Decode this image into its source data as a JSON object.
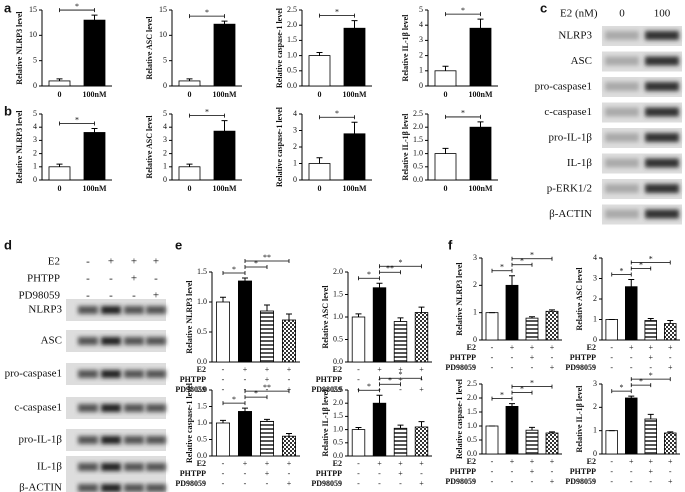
{
  "panels": {
    "a": "a",
    "b": "b",
    "c": "c",
    "d": "d",
    "e": "e",
    "f": "f"
  },
  "blot_c": {
    "header": "E2 (nM)",
    "lanes": [
      "0",
      "100"
    ],
    "rows": [
      "NLRP3",
      "ASC",
      "pro-caspase1",
      "c-caspase1",
      "pro-IL-1β",
      "IL-1β",
      "p-ERK1/2",
      "β-ACTIN"
    ]
  },
  "blot_d": {
    "conditions": [
      {
        "name": "E2",
        "signs": [
          "-",
          "+",
          "+",
          "+"
        ]
      },
      {
        "name": "PHTPP",
        "signs": [
          "-",
          "-",
          "+",
          "-"
        ]
      },
      {
        "name": "PD98059",
        "signs": [
          "-",
          "-",
          "-",
          "+"
        ]
      }
    ],
    "rows": [
      "NLRP3",
      "ASC",
      "pro-caspase1",
      "c-caspase1",
      "pro-IL-1β",
      "IL-1β",
      "β-ACTIN"
    ]
  },
  "chart_data": [
    {
      "type": "bar",
      "y_label": "Relative NLRP3 level",
      "categories": [
        "0",
        "100nM"
      ],
      "values": [
        1,
        13
      ],
      "errors": [
        0.4,
        1
      ],
      "fills": [
        "white",
        "black"
      ],
      "ylim": [
        0,
        15
      ],
      "yticks": [
        0,
        5,
        10,
        15
      ],
      "significance": [
        {
          "from": 0,
          "to": 1,
          "label": "*"
        }
      ]
    },
    {
      "type": "bar",
      "y_label": "Relative ASC level",
      "categories": [
        "0",
        "100nM"
      ],
      "values": [
        1,
        12.2
      ],
      "errors": [
        0.4,
        0.6
      ],
      "fills": [
        "white",
        "black"
      ],
      "ylim": [
        0,
        15
      ],
      "yticks": [
        0,
        5,
        10,
        15
      ],
      "significance": [
        {
          "from": 0,
          "to": 1,
          "label": "*"
        }
      ]
    },
    {
      "type": "bar",
      "y_label": "Relative caspase-1 level",
      "categories": [
        "0",
        "100nM"
      ],
      "values": [
        1,
        1.9
      ],
      "errors": [
        0.1,
        0.25
      ],
      "fills": [
        "white",
        "black"
      ],
      "ylim": [
        0,
        2.5
      ],
      "yticks": [
        {
          "value": 0,
          "label": "0.0"
        },
        {
          "value": 0.5,
          "label": "0.5"
        },
        {
          "value": 1,
          "label": "1.0"
        },
        {
          "value": 1.5,
          "label": "1.5"
        },
        {
          "value": 2,
          "label": "2.0"
        },
        {
          "value": 2.5,
          "label": "2.5"
        }
      ],
      "significance": [
        {
          "from": 0,
          "to": 1,
          "label": "*"
        }
      ]
    },
    {
      "type": "bar",
      "y_label": "Relative IL-1β level",
      "categories": [
        "0",
        "100nM"
      ],
      "values": [
        1,
        3.8
      ],
      "errors": [
        0.3,
        0.6
      ],
      "fills": [
        "white",
        "black"
      ],
      "ylim": [
        0,
        5
      ],
      "yticks": [
        0,
        1,
        2,
        3,
        4,
        5
      ],
      "significance": [
        {
          "from": 0,
          "to": 1,
          "label": "*"
        }
      ]
    },
    {
      "type": "bar",
      "y_label": "Relative NLRP3 level",
      "categories": [
        "0",
        "100nM"
      ],
      "values": [
        1,
        3.6
      ],
      "errors": [
        0.2,
        0.3
      ],
      "fills": [
        "white",
        "black"
      ],
      "ylim": [
        0,
        5
      ],
      "yticks": [
        0,
        1,
        2,
        3,
        4,
        5
      ],
      "significance": [
        {
          "from": 0,
          "to": 1,
          "label": "*"
        }
      ]
    },
    {
      "type": "bar",
      "y_label": "Relative ASC level",
      "categories": [
        "0",
        "100nM"
      ],
      "values": [
        1,
        3.7
      ],
      "errors": [
        0.2,
        0.8
      ],
      "fills": [
        "white",
        "black"
      ],
      "ylim": [
        0,
        5
      ],
      "yticks": [
        0,
        1,
        2,
        3,
        4,
        5
      ],
      "significance": [
        {
          "from": 0,
          "to": 1,
          "label": "*"
        }
      ]
    },
    {
      "type": "bar",
      "y_label": "Relative caspase-1 level",
      "categories": [
        "0",
        "100nM"
      ],
      "values": [
        1,
        2.8
      ],
      "errors": [
        0.35,
        0.7
      ],
      "fills": [
        "white",
        "black"
      ],
      "ylim": [
        0,
        4
      ],
      "yticks": [
        0,
        1,
        2,
        3,
        4
      ],
      "significance": [
        {
          "from": 0,
          "to": 1,
          "label": "*"
        }
      ]
    },
    {
      "type": "bar",
      "y_label": "Relative IL-1β level",
      "categories": [
        "0",
        "100nM"
      ],
      "values": [
        1,
        2
      ],
      "errors": [
        0.2,
        0.2
      ],
      "fills": [
        "white",
        "black"
      ],
      "ylim": [
        0,
        2.5
      ],
      "yticks": [
        {
          "value": 0,
          "label": "0.0"
        },
        {
          "value": 0.5,
          "label": "0.5"
        },
        {
          "value": 1,
          "label": "1.0"
        },
        {
          "value": 1.5,
          "label": "1.5"
        },
        {
          "value": 2,
          "label": "2.0"
        },
        {
          "value": 2.5,
          "label": "2.5"
        }
      ],
      "significance": [
        {
          "from": 0,
          "to": 1,
          "label": "*"
        }
      ]
    },
    {
      "type": "bar",
      "y_label": "Relative NLRP3 level",
      "conditions": [
        {
          "name": "E2",
          "signs": [
            "-",
            "+",
            "+",
            "+"
          ]
        },
        {
          "name": "PHTPP",
          "signs": [
            "-",
            "-",
            "+",
            "-"
          ]
        },
        {
          "name": "PD98059",
          "signs": [
            "-",
            "-",
            "-",
            "+"
          ]
        }
      ],
      "values": [
        1,
        1.35,
        0.85,
        0.7
      ],
      "errors": [
        0.08,
        0.05,
        0.1,
        0.1
      ],
      "fills": [
        "white",
        "black",
        "hatch",
        "check"
      ],
      "ylim": [
        0,
        1.5
      ],
      "yticks": [
        {
          "value": 0,
          "label": "0.0"
        },
        {
          "value": 0.5,
          "label": "0.5"
        },
        {
          "value": 1,
          "label": "1.0"
        },
        {
          "value": 1.5,
          "label": "1.5"
        }
      ],
      "significance": [
        {
          "from": 0,
          "to": 1,
          "label": "*"
        },
        {
          "from": 1,
          "to": 2,
          "label": "*"
        },
        {
          "from": 1,
          "to": 3,
          "label": "**"
        }
      ]
    },
    {
      "type": "bar",
      "y_label": "Relative ASC level",
      "conditions": [
        {
          "name": "E2",
          "signs": [
            "-",
            "+",
            "+",
            "+"
          ]
        },
        {
          "name": "PHTPP",
          "signs": [
            "-",
            "-",
            "+",
            "-"
          ]
        },
        {
          "name": "PD98059",
          "signs": [
            "-",
            "-",
            "-",
            "+"
          ]
        }
      ],
      "values": [
        1,
        1.65,
        0.9,
        1.1
      ],
      "errors": [
        0.07,
        0.1,
        0.08,
        0.12
      ],
      "fills": [
        "white",
        "black",
        "hatch",
        "check"
      ],
      "ylim": [
        0,
        2
      ],
      "yticks": [
        {
          "value": 0,
          "label": "0.0"
        },
        {
          "value": 0.5,
          "label": "0.5"
        },
        {
          "value": 1,
          "label": "1.0"
        },
        {
          "value": 1.5,
          "label": "1.5"
        },
        {
          "value": 2,
          "label": "2.0"
        }
      ],
      "significance": [
        {
          "from": 0,
          "to": 1,
          "label": "*"
        },
        {
          "from": 1,
          "to": 2,
          "label": "**"
        },
        {
          "from": 1,
          "to": 3,
          "label": "*"
        }
      ]
    },
    {
      "type": "bar",
      "y_label": "Relative caspase-1 level",
      "conditions": [
        {
          "name": "E2",
          "signs": [
            "-",
            "+",
            "+",
            "+"
          ]
        },
        {
          "name": "PHTPP",
          "signs": [
            "-",
            "-",
            "+",
            "-"
          ]
        },
        {
          "name": "PD98059",
          "signs": [
            "-",
            "-",
            "-",
            "+"
          ]
        }
      ],
      "values": [
        1,
        1.35,
        1.05,
        0.6
      ],
      "errors": [
        0.08,
        0.1,
        0.06,
        0.08
      ],
      "fills": [
        "white",
        "black",
        "hatch",
        "check"
      ],
      "ylim": [
        0,
        2
      ],
      "yticks": [
        {
          "value": 0,
          "label": "0.0"
        },
        {
          "value": 0.5,
          "label": "0.5"
        },
        {
          "value": 1,
          "label": "1.0"
        },
        {
          "value": 1.5,
          "label": "1.5"
        },
        {
          "value": 2,
          "label": "2.0"
        }
      ],
      "significance": [
        {
          "from": 0,
          "to": 1,
          "label": "*"
        },
        {
          "from": 1,
          "to": 2,
          "label": "*"
        },
        {
          "from": 1,
          "to": 3,
          "label": "**"
        }
      ]
    },
    {
      "type": "bar",
      "y_label": "Relative IL-1β level",
      "conditions": [
        {
          "name": "E2",
          "signs": [
            "-",
            "+",
            "+",
            "+"
          ]
        },
        {
          "name": "PHTPP",
          "signs": [
            "-",
            "-",
            "+",
            "-"
          ]
        },
        {
          "name": "PD98059",
          "signs": [
            "-",
            "-",
            "-",
            "+"
          ]
        }
      ],
      "values": [
        1,
        2,
        1.05,
        1.1
      ],
      "errors": [
        0.08,
        0.3,
        0.12,
        0.2
      ],
      "fills": [
        "white",
        "black",
        "hatch",
        "check"
      ],
      "ylim": [
        0,
        2.5
      ],
      "yticks": [
        {
          "value": 0,
          "label": "0.0"
        },
        {
          "value": 0.5,
          "label": "0.5"
        },
        {
          "value": 1,
          "label": "1.0"
        },
        {
          "value": 1.5,
          "label": "1.5"
        },
        {
          "value": 2,
          "label": "2.0"
        },
        {
          "value": 2.5,
          "label": "2.5"
        }
      ],
      "significance": [
        {
          "from": 0,
          "to": 1,
          "label": "*"
        },
        {
          "from": 1,
          "to": 2,
          "label": "*"
        },
        {
          "from": 1,
          "to": 3,
          "label": "*"
        }
      ]
    },
    {
      "type": "bar",
      "y_label": "Relative NLRP3 level",
      "conditions": [
        {
          "name": "E2",
          "signs": [
            "-",
            "+",
            "+",
            "+"
          ]
        },
        {
          "name": "PHTPP",
          "signs": [
            "-",
            "-",
            "+",
            "-"
          ]
        },
        {
          "name": "PD98059",
          "signs": [
            "-",
            "-",
            "-",
            "+"
          ]
        }
      ],
      "values": [
        1,
        2,
        0.8,
        1.05
      ],
      "errors": [
        0,
        0.35,
        0.05,
        0.05
      ],
      "fills": [
        "white",
        "black",
        "hatch",
        "check"
      ],
      "ylim": [
        0,
        3
      ],
      "yticks": [
        0,
        1,
        2,
        3
      ],
      "significance": [
        {
          "from": 0,
          "to": 1,
          "label": "*"
        },
        {
          "from": 1,
          "to": 2,
          "label": "*"
        },
        {
          "from": 1,
          "to": 3,
          "label": "*"
        }
      ]
    },
    {
      "type": "bar",
      "y_label": "Relative ASC level",
      "conditions": [
        {
          "name": "E2",
          "signs": [
            "-",
            "+",
            "+",
            "+"
          ]
        },
        {
          "name": "PHTPP",
          "signs": [
            "-",
            "-",
            "+",
            "-"
          ]
        },
        {
          "name": "PD98059",
          "signs": [
            "-",
            "-",
            "-",
            "+"
          ]
        }
      ],
      "values": [
        1,
        2.6,
        0.95,
        0.8
      ],
      "errors": [
        0,
        0.35,
        0.1,
        0.15
      ],
      "fills": [
        "white",
        "black",
        "hatch",
        "check"
      ],
      "ylim": [
        0,
        4
      ],
      "yticks": [
        0,
        1,
        2,
        3,
        4
      ],
      "significance": [
        {
          "from": 0,
          "to": 1,
          "label": "*"
        },
        {
          "from": 1,
          "to": 2,
          "label": "*"
        },
        {
          "from": 1,
          "to": 3,
          "label": "*"
        }
      ]
    },
    {
      "type": "bar",
      "y_label": "Relative caspase-1 level",
      "conditions": [
        {
          "name": "E2",
          "signs": [
            "-",
            "+",
            "+",
            "+"
          ]
        },
        {
          "name": "PHTPP",
          "signs": [
            "-",
            "-",
            "+",
            "-"
          ]
        },
        {
          "name": "PD98059",
          "signs": [
            "-",
            "-",
            "-",
            "+"
          ]
        }
      ],
      "values": [
        1,
        1.7,
        0.85,
        0.75
      ],
      "errors": [
        0,
        0.1,
        0.1,
        0.04
      ],
      "fills": [
        "white",
        "black",
        "hatch",
        "check"
      ],
      "ylim": [
        0,
        2.5
      ],
      "yticks": [
        {
          "value": 0,
          "label": "0.0"
        },
        {
          "value": 0.5,
          "label": "0.5"
        },
        {
          "value": 1,
          "label": "1.0"
        },
        {
          "value": 1.5,
          "label": "1.5"
        },
        {
          "value": 2,
          "label": "2.0"
        },
        {
          "value": 2.5,
          "label": "2.5"
        }
      ],
      "significance": [
        {
          "from": 0,
          "to": 1,
          "label": "*"
        },
        {
          "from": 1,
          "to": 2,
          "label": "*"
        },
        {
          "from": 1,
          "to": 3,
          "label": "*"
        }
      ]
    },
    {
      "type": "bar",
      "y_label": "Relative IL-1β level",
      "conditions": [
        {
          "name": "E2",
          "signs": [
            "-",
            "+",
            "+",
            "+"
          ]
        },
        {
          "name": "PHTPP",
          "signs": [
            "-",
            "-",
            "+",
            "-"
          ]
        },
        {
          "name": "PD98059",
          "signs": [
            "-",
            "-",
            "-",
            "+"
          ]
        }
      ],
      "values": [
        1,
        2.4,
        1.5,
        0.9
      ],
      "errors": [
        0,
        0.08,
        0.2,
        0.05
      ],
      "fills": [
        "white",
        "black",
        "hatch",
        "check"
      ],
      "ylim": [
        0,
        3
      ],
      "yticks": [
        0,
        1,
        2,
        3
      ],
      "significance": [
        {
          "from": 0,
          "to": 1,
          "label": "*"
        },
        {
          "from": 1,
          "to": 2,
          "label": "*"
        },
        {
          "from": 1,
          "to": 3,
          "label": "*"
        }
      ]
    }
  ]
}
